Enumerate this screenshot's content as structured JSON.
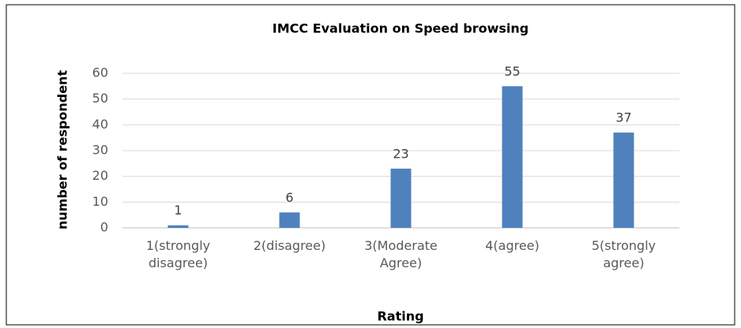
{
  "chart_data": {
    "type": "bar",
    "title": "IMCC Evaluation on Speed browsing",
    "x_label": "Rating",
    "y_label": "number of respondent",
    "categories": [
      "1(strongly disagree)",
      "2(disagree)",
      "3(Moderate Agree)",
      "4(agree)",
      "5(strongly agree)"
    ],
    "values": [
      1,
      6,
      23,
      55,
      37
    ],
    "color": "#4f81bd",
    "ylim": [
      0,
      60
    ],
    "yticks": [
      0,
      10,
      20,
      30,
      40,
      50,
      60
    ],
    "grid": true
  }
}
